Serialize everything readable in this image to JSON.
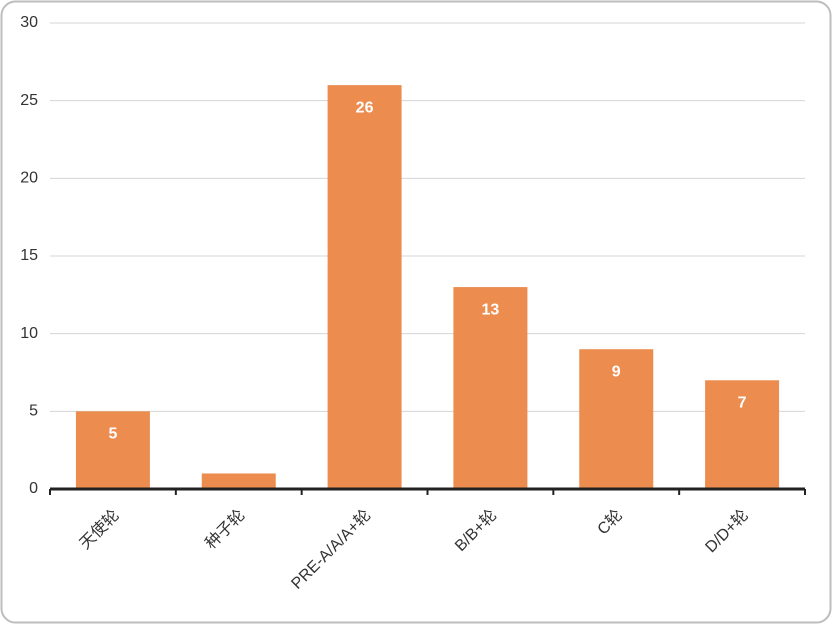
{
  "chart_data": {
    "type": "bar",
    "categories": [
      "天使轮",
      "种子轮",
      "PRE-A/A/A+轮",
      "B/B+轮",
      "C轮",
      "D/D+轮"
    ],
    "values": [
      5,
      1,
      26,
      13,
      9,
      7
    ],
    "color": "#ec8d4f",
    "ylim": [
      0,
      30
    ],
    "yticks": [
      0,
      5,
      10,
      15,
      20,
      25,
      30
    ],
    "grid": true
  }
}
